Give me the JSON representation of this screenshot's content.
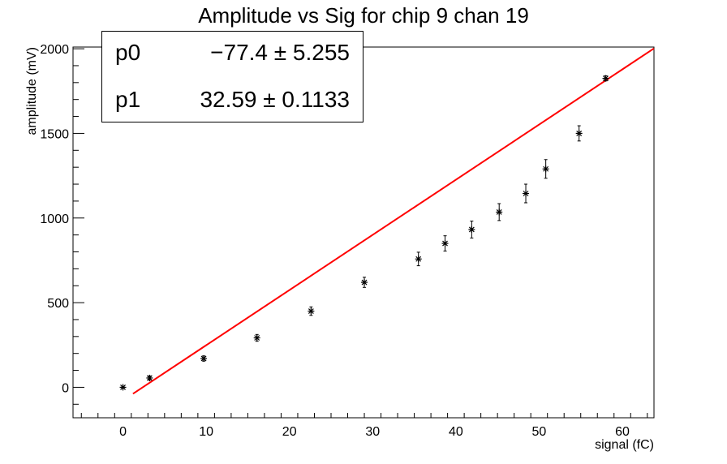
{
  "chart_data": {
    "type": "scatter",
    "title": "Amplitude vs Sig for chip 9 chan 19",
    "xlabel": "signal (fC)",
    "ylabel": "amplitude (mV)",
    "xlim": [
      -6,
      63.8
    ],
    "ylim": [
      -180,
      2010
    ],
    "x_ticks": [
      0,
      10,
      20,
      30,
      40,
      50,
      60
    ],
    "y_ticks": [
      0,
      500,
      1000,
      1500,
      2000
    ],
    "grid": false,
    "series": [
      {
        "marker": "star",
        "color": "#000000",
        "points": [
          {
            "x": 0.0,
            "y": 0,
            "err": 5
          },
          {
            "x": 3.2,
            "y": 55,
            "err": 12
          },
          {
            "x": 9.7,
            "y": 170,
            "err": 15
          },
          {
            "x": 16.1,
            "y": 292,
            "err": 20
          },
          {
            "x": 22.6,
            "y": 450,
            "err": 25
          },
          {
            "x": 29.0,
            "y": 620,
            "err": 30
          },
          {
            "x": 35.5,
            "y": 758,
            "err": 40
          },
          {
            "x": 38.7,
            "y": 850,
            "err": 45
          },
          {
            "x": 41.9,
            "y": 932,
            "err": 50
          },
          {
            "x": 45.2,
            "y": 1035,
            "err": 50
          },
          {
            "x": 48.4,
            "y": 1145,
            "err": 55
          },
          {
            "x": 50.8,
            "y": 1290,
            "err": 55
          },
          {
            "x": 54.8,
            "y": 1500,
            "err": 45
          },
          {
            "x": 58.0,
            "y": 1825,
            "err": 15
          }
        ]
      }
    ],
    "fit": {
      "color": "#ff0000",
      "x_range": [
        1.2,
        63.8
      ],
      "params": [
        {
          "name": "p0",
          "value": "−77.4 ± 5.255",
          "num": -77.4
        },
        {
          "name": "p1",
          "value": "32.59 ± 0.1133",
          "num": 32.59
        }
      ]
    }
  }
}
